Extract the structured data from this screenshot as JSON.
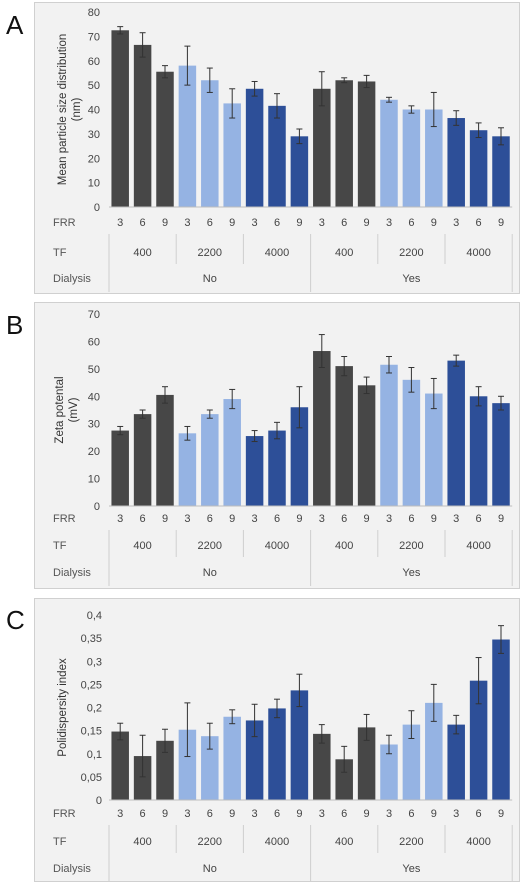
{
  "panel_letters": [
    "A",
    "B",
    "C"
  ],
  "group_colors": {
    "No-400": "#474747",
    "No-2200": "#95b3e3",
    "No-4000": "#2d4f98",
    "Yes-400": "#474747",
    "Yes-2200": "#95b3e3",
    "Yes-4000": "#2d4f98"
  },
  "error_bar_color": "#333333",
  "row_labels": {
    "frr": "FRR",
    "tf": "TF",
    "dialysis": "Dialysis"
  },
  "categories": {
    "frr": [
      "3",
      "6",
      "9",
      "3",
      "6",
      "9",
      "3",
      "6",
      "9",
      "3",
      "6",
      "9",
      "3",
      "6",
      "9",
      "3",
      "6",
      "9"
    ],
    "tf": [
      "400",
      "2200",
      "4000",
      "400",
      "2200",
      "4000"
    ],
    "dialysis": [
      "No",
      "Yes"
    ]
  },
  "chart_data": [
    {
      "type": "bar",
      "ylabel": "Mean particle size distribution (nm)",
      "ylabel_lines": [
        "Mean particle size distribution",
        "(nm)"
      ],
      "ylim": [
        0,
        80
      ],
      "yticks": [
        "0",
        "10",
        "20",
        "30",
        "40",
        "50",
        "60",
        "70",
        "80"
      ],
      "values": [
        72.5,
        66.5,
        55.5,
        58,
        52,
        42.5,
        48.5,
        41.5,
        29,
        48.5,
        52,
        51.5,
        44,
        40,
        40,
        36.5,
        31.5,
        29
      ],
      "errors": [
        1.5,
        5,
        2.5,
        8,
        5,
        6,
        3,
        5,
        3,
        7,
        1,
        2.5,
        1,
        1.5,
        7,
        3,
        3,
        3.5
      ]
    },
    {
      "type": "bar",
      "ylabel": "Zeta potental (mV)",
      "ylabel_lines": [
        "Zeta potental",
        "(mV)"
      ],
      "ylim": [
        0,
        70
      ],
      "yticks": [
        "0",
        "10",
        "20",
        "30",
        "40",
        "50",
        "60",
        "70"
      ],
      "values": [
        27.5,
        33.5,
        40.5,
        26.5,
        33.5,
        39,
        25.5,
        27.5,
        36,
        56.5,
        51,
        44,
        51.5,
        46,
        41,
        53,
        40,
        37.5
      ],
      "errors": [
        1.5,
        1.5,
        3,
        2.5,
        1.5,
        3.5,
        2,
        3,
        7.5,
        6,
        3.5,
        3,
        3,
        4.5,
        5.5,
        2,
        3.5,
        2.5
      ]
    },
    {
      "type": "bar",
      "ylabel": "Polidispersity index",
      "ylabel_lines": [
        "Polidispersity index"
      ],
      "ylim": [
        0,
        0.4
      ],
      "yticks": [
        "0",
        "0,05",
        "0,1",
        "0,15",
        "0,2",
        "0,25",
        "0,3",
        "0,35",
        "0,4"
      ],
      "values": [
        0.148,
        0.095,
        0.128,
        0.152,
        0.138,
        0.18,
        0.172,
        0.198,
        0.237,
        0.143,
        0.088,
        0.157,
        0.12,
        0.163,
        0.21,
        0.163,
        0.258,
        0.347
      ],
      "errors": [
        0.018,
        0.045,
        0.025,
        0.058,
        0.028,
        0.015,
        0.035,
        0.02,
        0.035,
        0.02,
        0.028,
        0.028,
        0.02,
        0.03,
        0.04,
        0.02,
        0.05,
        0.03
      ]
    }
  ]
}
